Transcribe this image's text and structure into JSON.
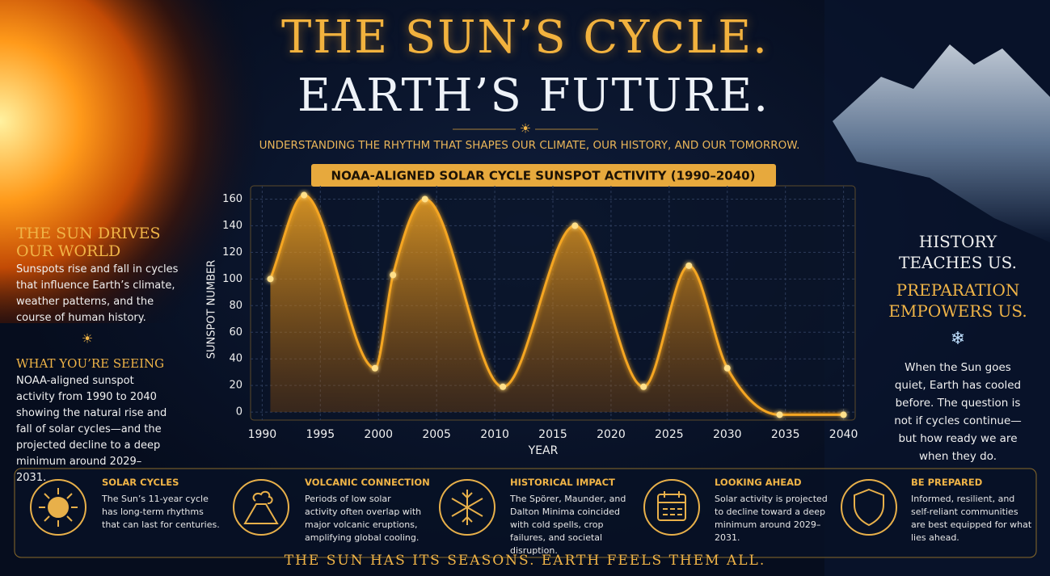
{
  "header": {
    "title_line1": "THE SUN’S CYCLE.",
    "title_line2": "EARTH’S FUTURE.",
    "subtitle": "UNDERSTANDING THE RHYTHM THAT SHAPES OUR CLIMATE, OUR HISTORY, AND OUR TOMORROW."
  },
  "left_panel": {
    "heading": "THE SUN DRIVES OUR WORLD",
    "text": "Sunspots rise and fall in cycles that influence Earth’s climate, weather patterns, and the course of human history.",
    "heading2": "WHAT YOU’RE SEEING",
    "text2": "NOAA-aligned sunspot activity from 1990 to 2040 showing the natural rise and fall of solar cycles—and the projected decline to a deep minimum around 2029–2031."
  },
  "right_panel": {
    "heading": "HISTORY TEACHES US.",
    "heading2": "PREPARATION EMPOWERS US.",
    "text": "When the Sun goes quiet, Earth has cooled before. The question is not if cycles continue— but how ready we are when they do."
  },
  "chart_data": {
    "type": "area",
    "title": "NOAA-ALIGNED SOLAR CYCLE SUNSPOT ACTIVITY (1990–2040)",
    "x_label": "YEAR",
    "y_label": "SUNSPOT NUMBER",
    "x": [
      1990.7,
      1993.6,
      1999.7,
      2001.25,
      2004.0,
      2010.7,
      2016.9,
      2022.8,
      2026.7,
      2030.0,
      2034.5,
      2040.0
    ],
    "values": [
      100,
      163,
      33,
      103,
      160,
      19,
      140,
      19,
      110,
      33,
      -2,
      -2
    ],
    "color": "#f5a623",
    "xlim": [
      1989,
      2041
    ],
    "xticks": [
      1990,
      1995,
      2000,
      2005,
      2010,
      2015,
      2020,
      2025,
      2030,
      2035,
      2040
    ],
    "ylim": [
      -6,
      170
    ],
    "yticks": [
      0,
      20,
      40,
      60,
      80,
      100,
      120,
      140,
      160
    ],
    "grid": true
  },
  "cards": [
    {
      "title": "SOLAR CYCLES",
      "text": "The Sun’s 11-year cycle has long-term rhythms that can last for centuries."
    },
    {
      "title": "VOLCANIC CONNECTION",
      "text": "Periods of low solar activity often overlap with major volcanic eruptions, amplifying global cooling."
    },
    {
      "title": "HISTORICAL IMPACT",
      "text": "The Spörer, Maunder, and Dalton Minima coincided with cold spells, crop failures, and societal disruption."
    },
    {
      "title": "LOOKING AHEAD",
      "text": "Solar activity is projected to decline toward a deep minimum around 2029–2031."
    },
    {
      "title": "BE PREPARED",
      "text": "Informed, resilient, and self-reliant communities are best equipped for what lies ahead."
    }
  ],
  "footer": "THE SUN HAS ITS SEASONS. EARTH FEELS THEM ALL."
}
